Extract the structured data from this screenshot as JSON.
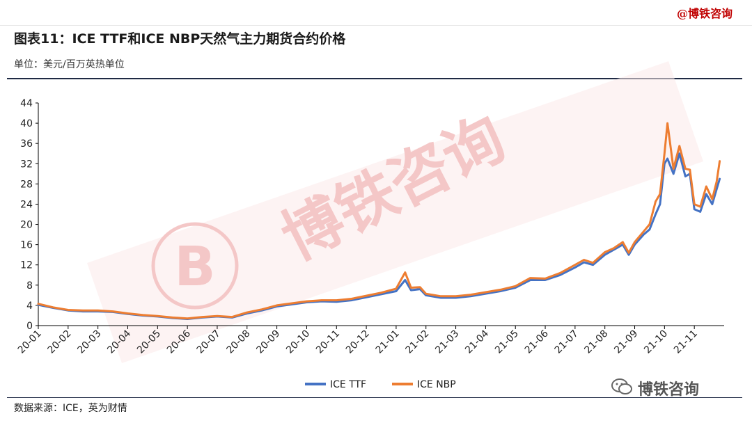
{
  "header": {
    "brand": "@博铁咨询",
    "title": "图表11：ICE TTF和ICE NBP天然气主力期货合约价格",
    "unit": "单位：美元/百万英热单位"
  },
  "footer": {
    "source": "数据来源：ICE，英为财情",
    "wechat_label": "博铁咨询"
  },
  "watermark": {
    "text": "博铁咨询",
    "mark": "B",
    "color": "#f4c7c7"
  },
  "colors": {
    "ttf": "#4472c4",
    "nbp": "#ed7d31",
    "axis": "#000000"
  },
  "chart_data": {
    "type": "line",
    "title": "",
    "xlabel": "",
    "ylabel": "",
    "ylim": [
      0,
      44
    ],
    "yticks": [
      0,
      4,
      8,
      12,
      16,
      20,
      24,
      28,
      32,
      36,
      40,
      44
    ],
    "grid": false,
    "legend": "bottom-center",
    "xticks": [
      "20-01",
      "20-02",
      "20-03",
      "20-04",
      "20-05",
      "20-06",
      "20-07",
      "20-08",
      "20-09",
      "20-10",
      "20-11",
      "20-12",
      "21-01",
      "21-02",
      "21-03",
      "21-04",
      "21-05",
      "21-06",
      "21-07",
      "21-08",
      "21-09",
      "21-10",
      "21-11"
    ],
    "x": [
      "20-01",
      "20-01.5",
      "20-02",
      "20-02.5",
      "20-03",
      "20-03.5",
      "20-04",
      "20-04.5",
      "20-05",
      "20-05.5",
      "20-06",
      "20-06.5",
      "20-07",
      "20-07.5",
      "20-08",
      "20-08.5",
      "20-09",
      "20-09.5",
      "20-10",
      "20-10.5",
      "20-11",
      "20-11.5",
      "20-12",
      "20-12.5",
      "21-01",
      "21-01.3",
      "21-01.5",
      "21-01.8",
      "21-02",
      "21-02.5",
      "21-03",
      "21-03.5",
      "21-04",
      "21-04.5",
      "21-05",
      "21-05.5",
      "21-06",
      "21-06.5",
      "21-07",
      "21-07.3",
      "21-07.6",
      "21-08",
      "21-08.3",
      "21-08.6",
      "21-08.8",
      "21-09",
      "21-09.3",
      "21-09.5",
      "21-09.7",
      "21-09.85",
      "21-10",
      "21-10.1",
      "21-10.3",
      "21-10.5",
      "21-10.7",
      "21-10.85",
      "21-11",
      "21-11.2",
      "21-11.4",
      "21-11.6",
      "21-11.75",
      "21-11.85"
    ],
    "series": [
      {
        "name": "ICE TTF",
        "values": [
          4.1,
          3.5,
          3.0,
          2.8,
          2.8,
          2.7,
          2.3,
          2.0,
          1.8,
          1.5,
          1.3,
          1.6,
          1.8,
          1.6,
          2.4,
          3.0,
          3.8,
          4.2,
          4.6,
          4.8,
          4.7,
          5.0,
          5.6,
          6.2,
          6.8,
          9.0,
          7.0,
          7.2,
          6.0,
          5.5,
          5.5,
          5.8,
          6.3,
          6.8,
          7.5,
          9.0,
          9.0,
          10.0,
          11.5,
          12.5,
          12.0,
          14.0,
          15.0,
          16.0,
          14.0,
          16.0,
          18.0,
          19.0,
          22.0,
          24.0,
          32.0,
          33.0,
          30.0,
          34.0,
          29.5,
          30.0,
          23.0,
          22.5,
          26.0,
          24.0,
          27.0,
          29.0
        ]
      },
      {
        "name": "ICE NBP",
        "values": [
          4.3,
          3.6,
          3.1,
          3.0,
          3.0,
          2.8,
          2.4,
          2.1,
          1.9,
          1.6,
          1.4,
          1.7,
          1.9,
          1.7,
          2.6,
          3.2,
          4.0,
          4.4,
          4.8,
          5.0,
          5.0,
          5.3,
          5.9,
          6.5,
          7.3,
          10.5,
          7.5,
          7.6,
          6.3,
          5.8,
          5.8,
          6.1,
          6.6,
          7.1,
          7.8,
          9.4,
          9.3,
          10.4,
          12.0,
          13.0,
          12.4,
          14.5,
          15.3,
          16.5,
          14.4,
          16.5,
          18.6,
          20.0,
          24.5,
          26.0,
          34.0,
          40.0,
          31.0,
          35.5,
          31.0,
          30.8,
          24.0,
          23.5,
          27.5,
          25.0,
          28.5,
          32.5
        ]
      }
    ]
  }
}
